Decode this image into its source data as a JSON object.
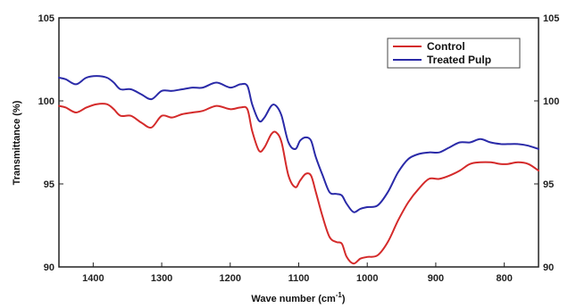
{
  "chart_data": {
    "type": "line",
    "xlabel": "Wave number (cm",
    "xlabel_sup": "-1",
    "xlabel_close": ")",
    "ylabel": "Transmittance (%)",
    "xlim": [
      1450,
      750
    ],
    "ylim": [
      90,
      105
    ],
    "x_ticks": [
      1400,
      1300,
      1200,
      1100,
      1000,
      900,
      800
    ],
    "y_ticks": [
      90,
      95,
      100,
      105
    ],
    "legend_position": "top-right",
    "grid": false,
    "series": [
      {
        "name": "Control",
        "color": "#d42a2a",
        "points": [
          [
            1450,
            99.7
          ],
          [
            1440,
            99.6
          ],
          [
            1425,
            99.3
          ],
          [
            1410,
            99.6
          ],
          [
            1395,
            99.8
          ],
          [
            1380,
            99.8
          ],
          [
            1370,
            99.5
          ],
          [
            1360,
            99.1
          ],
          [
            1345,
            99.1
          ],
          [
            1330,
            98.7
          ],
          [
            1315,
            98.4
          ],
          [
            1300,
            99.1
          ],
          [
            1285,
            99.0
          ],
          [
            1270,
            99.2
          ],
          [
            1255,
            99.3
          ],
          [
            1240,
            99.4
          ],
          [
            1220,
            99.7
          ],
          [
            1200,
            99.5
          ],
          [
            1185,
            99.6
          ],
          [
            1175,
            99.5
          ],
          [
            1168,
            98.2
          ],
          [
            1158,
            97.0
          ],
          [
            1150,
            97.2
          ],
          [
            1140,
            98.0
          ],
          [
            1133,
            98.1
          ],
          [
            1125,
            97.5
          ],
          [
            1115,
            95.5
          ],
          [
            1105,
            94.8
          ],
          [
            1098,
            95.2
          ],
          [
            1090,
            95.6
          ],
          [
            1082,
            95.5
          ],
          [
            1075,
            94.5
          ],
          [
            1065,
            93.0
          ],
          [
            1055,
            91.8
          ],
          [
            1045,
            91.5
          ],
          [
            1037,
            91.4
          ],
          [
            1030,
            90.6
          ],
          [
            1020,
            90.2
          ],
          [
            1010,
            90.5
          ],
          [
            1000,
            90.6
          ],
          [
            985,
            90.7
          ],
          [
            970,
            91.5
          ],
          [
            955,
            92.8
          ],
          [
            940,
            93.9
          ],
          [
            925,
            94.7
          ],
          [
            910,
            95.3
          ],
          [
            895,
            95.3
          ],
          [
            880,
            95.5
          ],
          [
            865,
            95.8
          ],
          [
            850,
            96.2
          ],
          [
            835,
            96.3
          ],
          [
            820,
            96.3
          ],
          [
            805,
            96.2
          ],
          [
            795,
            96.2
          ],
          [
            780,
            96.3
          ],
          [
            765,
            96.2
          ],
          [
            750,
            95.8
          ]
        ]
      },
      {
        "name": "Treated Pulp",
        "color": "#2a2aa8",
        "points": [
          [
            1450,
            101.4
          ],
          [
            1440,
            101.3
          ],
          [
            1425,
            101.0
          ],
          [
            1410,
            101.4
          ],
          [
            1395,
            101.5
          ],
          [
            1380,
            101.4
          ],
          [
            1370,
            101.1
          ],
          [
            1360,
            100.7
          ],
          [
            1345,
            100.7
          ],
          [
            1330,
            100.4
          ],
          [
            1315,
            100.1
          ],
          [
            1300,
            100.6
          ],
          [
            1285,
            100.6
          ],
          [
            1270,
            100.7
          ],
          [
            1255,
            100.8
          ],
          [
            1240,
            100.8
          ],
          [
            1220,
            101.1
          ],
          [
            1200,
            100.8
          ],
          [
            1185,
            101.0
          ],
          [
            1175,
            100.9
          ],
          [
            1168,
            99.8
          ],
          [
            1158,
            98.8
          ],
          [
            1150,
            99.0
          ],
          [
            1140,
            99.7
          ],
          [
            1133,
            99.7
          ],
          [
            1125,
            99.1
          ],
          [
            1115,
            97.5
          ],
          [
            1105,
            97.1
          ],
          [
            1098,
            97.6
          ],
          [
            1090,
            97.8
          ],
          [
            1082,
            97.6
          ],
          [
            1075,
            96.6
          ],
          [
            1065,
            95.5
          ],
          [
            1055,
            94.5
          ],
          [
            1045,
            94.4
          ],
          [
            1037,
            94.3
          ],
          [
            1030,
            93.8
          ],
          [
            1020,
            93.3
          ],
          [
            1010,
            93.5
          ],
          [
            1000,
            93.6
          ],
          [
            985,
            93.7
          ],
          [
            970,
            94.5
          ],
          [
            955,
            95.7
          ],
          [
            940,
            96.5
          ],
          [
            925,
            96.8
          ],
          [
            910,
            96.9
          ],
          [
            895,
            96.9
          ],
          [
            880,
            97.2
          ],
          [
            865,
            97.5
          ],
          [
            850,
            97.5
          ],
          [
            835,
            97.7
          ],
          [
            820,
            97.5
          ],
          [
            805,
            97.4
          ],
          [
            795,
            97.4
          ],
          [
            780,
            97.4
          ],
          [
            765,
            97.3
          ],
          [
            750,
            97.1
          ]
        ]
      }
    ]
  }
}
